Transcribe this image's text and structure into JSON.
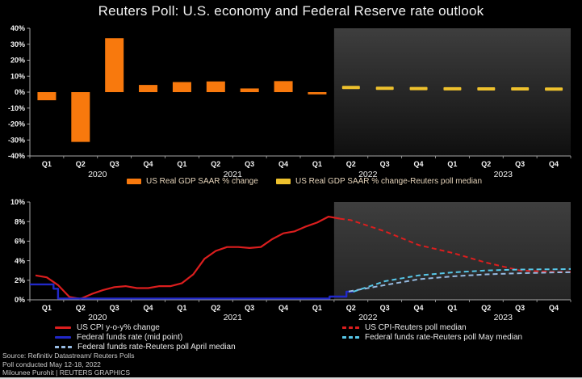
{
  "title": "Reuters Poll: U.S. economy and Federal Reserve rate outlook",
  "colors": {
    "background": "#000000",
    "orange": "#F8790D",
    "yellow": "#EEC12D",
    "red": "#DB1E1E",
    "blue": "#2128C8",
    "light_blue": "#96BBE2",
    "cyan": "#57C7E8",
    "axis": "#A9A9A9",
    "tick_text": "#F3F3F3",
    "forecast_gray": "#3E3E3E"
  },
  "top_legend": [
    {
      "label": "US Real GDP SAAR % change",
      "color": "orange"
    },
    {
      "label": "US Real GDP SAAR % change-Reuters poll median",
      "color": "yellow"
    }
  ],
  "bottom_legend": {
    "left": [
      {
        "label": "US CPI y-o-y% change",
        "color": "red",
        "style": "solid"
      },
      {
        "label": "Federal funds rate (mid point)",
        "color": "blue",
        "style": "solid"
      },
      {
        "label": "Federal funds rate-Reuters poll April median",
        "color": "light_blue",
        "style": "dashed"
      }
    ],
    "right": [
      {
        "label": "US CPI-Reuters poll median",
        "color": "red",
        "style": "dashed"
      },
      {
        "label": "Federal funds rate-Reuters poll May median",
        "color": "cyan",
        "style": "dashed"
      }
    ]
  },
  "footer": {
    "line1": "Source: Refinitiv Datastream/  Reuters Polls",
    "line2": "Poll conducted May 12-18, 2022",
    "line3": "Milounee Purohit | REUTERS GRAPHICS"
  },
  "chart_data": [
    {
      "type": "bar",
      "title": "US Real GDP quarterly change and Reuters poll median",
      "xlabel": "",
      "ylabel": "",
      "ylim": [
        -40,
        40
      ],
      "yticks": [
        40,
        30,
        20,
        10,
        0,
        -10,
        -20,
        -30,
        -40
      ],
      "ytick_labels": [
        "40%",
        "30%",
        "20%",
        "10%",
        "0%",
        "-10%",
        "-20%",
        "-30%",
        "-40%"
      ],
      "quarters": [
        "Q1",
        "Q2",
        "Q3",
        "Q4",
        "Q1",
        "Q2",
        "Q3",
        "Q4",
        "Q1",
        "Q2",
        "Q3",
        "Q4",
        "Q1",
        "Q2",
        "Q3",
        "Q4"
      ],
      "years": [
        {
          "label": "2020",
          "center_quarter": 2
        },
        {
          "label": "2021",
          "center_quarter": 6
        },
        {
          "label": "2022",
          "center_quarter": 10
        },
        {
          "label": "2023",
          "center_quarter": 14
        }
      ],
      "forecast_start_quarter": 9,
      "grid": false,
      "legend_position": "bottom",
      "series": [
        {
          "name": "US Real GDP SAAR % change",
          "color": "orange",
          "render": "bar",
          "start_quarter": 0,
          "values": [
            -5.1,
            -31.2,
            33.8,
            4.5,
            6.3,
            6.7,
            2.3,
            6.9,
            -1.4
          ]
        },
        {
          "name": "US Real GDP SAAR % change-Reuters poll median",
          "color": "yellow",
          "render": "dash",
          "start_quarter": 9,
          "values": [
            2.9,
            2.4,
            2.2,
            2.1,
            2.0,
            2.0,
            1.9
          ]
        }
      ]
    },
    {
      "type": "line",
      "title": "US CPI and Federal funds rate with Reuters poll medians",
      "xlabel": "",
      "ylabel": "",
      "ylim": [
        0,
        10
      ],
      "yticks": [
        10,
        8,
        6,
        4,
        2,
        0
      ],
      "ytick_labels": [
        "10%",
        "8%",
        "6%",
        "4%",
        "2%",
        "0%"
      ],
      "x_unit": "months since Jan 2020",
      "x_range": [
        0,
        48
      ],
      "quarters": [
        "Q1",
        "Q2",
        "Q3",
        "Q4",
        "Q1",
        "Q2",
        "Q3",
        "Q4",
        "Q1",
        "Q2",
        "Q3",
        "Q4",
        "Q1",
        "Q2",
        "Q3",
        "Q4"
      ],
      "years": [
        {
          "label": "2020",
          "center_quarter": 2
        },
        {
          "label": "2021",
          "center_quarter": 6
        },
        {
          "label": "2022",
          "center_quarter": 10
        },
        {
          "label": "2023",
          "center_quarter": 14
        }
      ],
      "forecast_start_month": 27,
      "grid": false,
      "legend_position": "bottom",
      "series": [
        {
          "name": "US CPI y-o-y% change",
          "color": "red",
          "style": "solid",
          "width": 2.2,
          "monthly": {
            "start": 0.5,
            "step": 1,
            "values": [
              2.5,
              2.3,
              1.5,
              0.3,
              0.1,
              0.6,
              1.0,
              1.3,
              1.4,
              1.2,
              1.2,
              1.4,
              1.4,
              1.7,
              2.6,
              4.2,
              5.0,
              5.4,
              5.4,
              5.3,
              5.4,
              6.2,
              6.8,
              7.0,
              7.5,
              7.9,
              8.5,
              8.3
            ]
          }
        },
        {
          "name": "Federal funds rate (mid point)",
          "color": "blue",
          "style": "solid",
          "width": 2.4,
          "points": [
            [
              0,
              1.58
            ],
            [
              2.1,
              1.58
            ],
            [
              2.1,
              1.13
            ],
            [
              2.5,
              1.13
            ],
            [
              2.5,
              0.13
            ],
            [
              26.6,
              0.13
            ],
            [
              26.6,
              0.33
            ],
            [
              28.1,
              0.33
            ],
            [
              28.1,
              0.83
            ],
            [
              28.7,
              0.83
            ]
          ]
        },
        {
          "name": "US CPI-Reuters poll median",
          "color": "red",
          "style": "dashed",
          "width": 2,
          "points": [
            [
              27.5,
              8.3
            ],
            [
              28.5,
              8.15
            ],
            [
              31.5,
              7.0
            ],
            [
              34.5,
              5.6
            ],
            [
              37.5,
              4.8
            ],
            [
              40.5,
              3.8
            ],
            [
              43.5,
              3.0
            ],
            [
              46.5,
              2.85
            ],
            [
              48,
              2.85
            ]
          ]
        },
        {
          "name": "Federal funds rate-Reuters poll April median",
          "color": "light_blue",
          "style": "dashed",
          "width": 2,
          "points": [
            [
              28.3,
              0.85
            ],
            [
              31.5,
              1.5
            ],
            [
              34.5,
              2.1
            ],
            [
              37.5,
              2.4
            ],
            [
              40.5,
              2.6
            ],
            [
              43.5,
              2.72
            ],
            [
              46.5,
              2.8
            ],
            [
              48,
              2.82
            ]
          ]
        },
        {
          "name": "Federal funds rate-Reuters poll May median",
          "color": "cyan",
          "style": "dashed",
          "width": 2,
          "points": [
            [
              28.7,
              0.83
            ],
            [
              31.5,
              1.9
            ],
            [
              34.5,
              2.5
            ],
            [
              37.5,
              2.8
            ],
            [
              40.5,
              3.0
            ],
            [
              43.5,
              3.1
            ],
            [
              46.5,
              3.12
            ],
            [
              48,
              3.15
            ]
          ]
        }
      ]
    }
  ]
}
